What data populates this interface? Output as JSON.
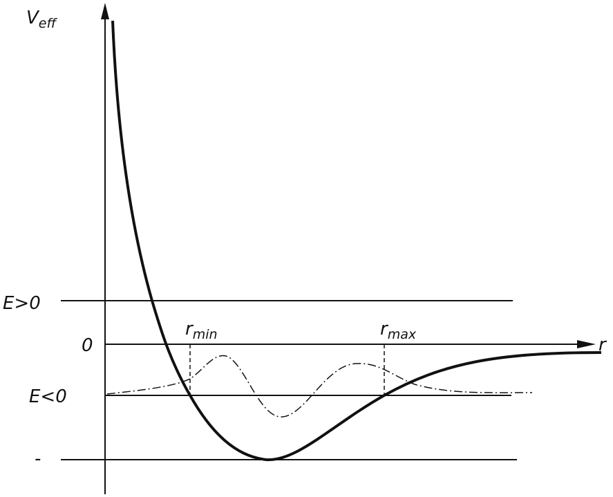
{
  "axes": {
    "y_label": {
      "base": "V",
      "sub": "eff"
    },
    "x_label": "r"
  },
  "levels": {
    "positive": "E>0",
    "zero": "0",
    "negative": "E<0",
    "minimum": "-"
  },
  "turning_points": {
    "inner": {
      "base": "r",
      "sub": "min"
    },
    "outer": {
      "base": "r",
      "sub": "max"
    }
  }
}
